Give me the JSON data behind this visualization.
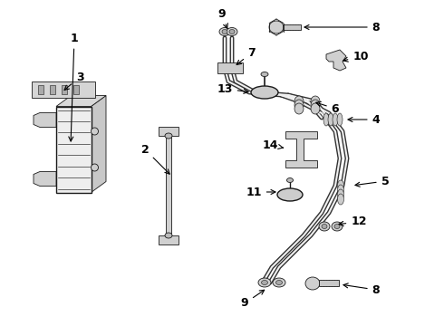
{
  "bg_color": "#ffffff",
  "line_color": "#1a1a1a",
  "lw_hose": 2.2,
  "lw_part": 1.0,
  "lw_thin": 0.6,
  "label_fontsize": 9
}
